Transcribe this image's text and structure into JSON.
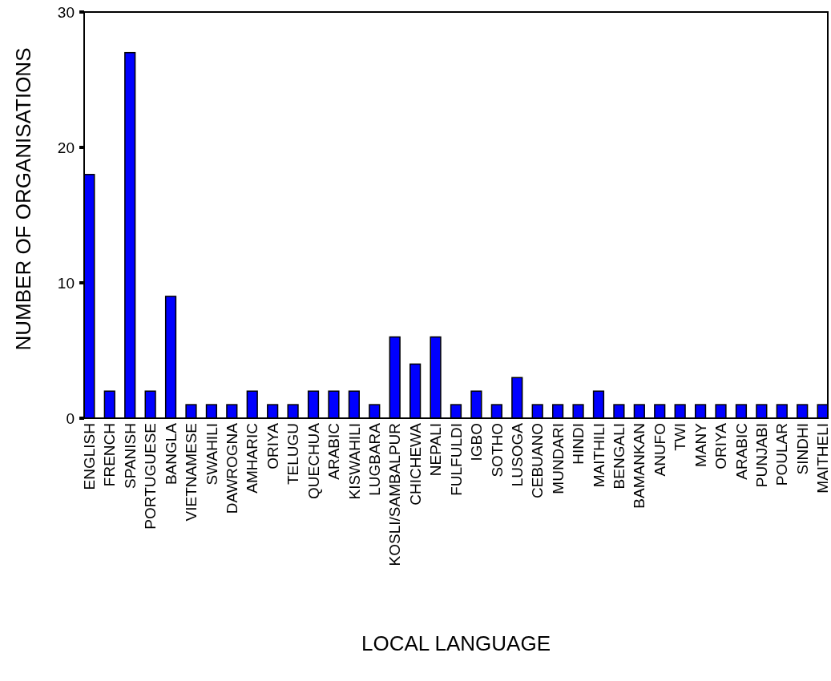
{
  "chart_data": {
    "type": "bar",
    "xlabel": "LOCAL LANGUAGE",
    "ylabel": "NUMBER OF ORGANISATIONS",
    "categories": [
      "ENGLISH",
      "FRENCH",
      "SPANISH",
      "PORTUGUESE",
      "BANGLA",
      "VIETNAMESE",
      "SWAHILI",
      "DAWROGNA",
      "AMHARIC",
      "ORIYA",
      "TELUGU",
      "QUECHUA",
      "ARABIC",
      "KISWAHILI",
      "LUGBARA",
      "KOSLI/SAMBALPUR",
      "CHICHEWA",
      "NEPALI",
      "FULFULDI",
      "IGBO",
      "SOTHO",
      "LUSOGA",
      "CEBUANO",
      "MUNDARI",
      "HINDI",
      "MAITHILI",
      "BENGALI",
      "BAMANKAN",
      "ANUFO",
      "TWI",
      "MANY",
      "ORIYA",
      "ARABIC",
      "PUNJABI",
      "POULAR",
      "SINDHI",
      "MAITHELI"
    ],
    "values": [
      18,
      2,
      27,
      2,
      9,
      1,
      1,
      1,
      2,
      1,
      1,
      2,
      2,
      2,
      1,
      6,
      4,
      6,
      1,
      2,
      1,
      3,
      1,
      1,
      1,
      2,
      1,
      1,
      1,
      1,
      1,
      1,
      1,
      1,
      1,
      1,
      1
    ],
    "color": "#0000ff",
    "ylim": [
      0,
      30
    ],
    "yticks": [
      0,
      10,
      20,
      30
    ],
    "grid": false
  }
}
